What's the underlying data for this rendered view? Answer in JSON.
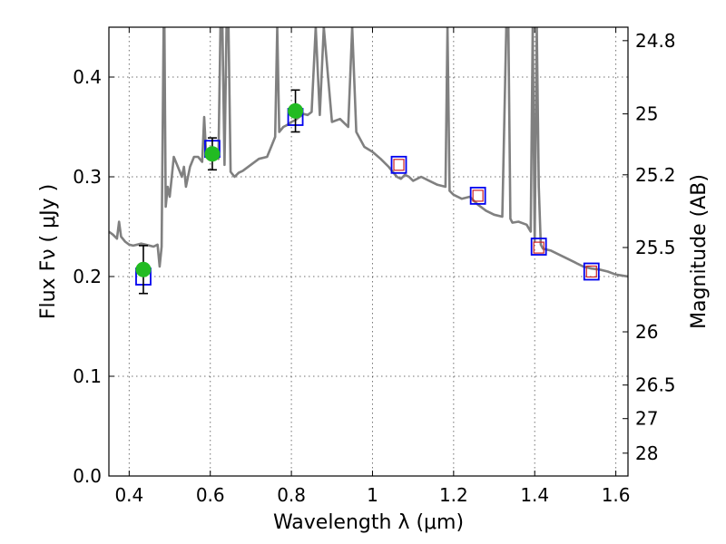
{
  "chart_data": {
    "type": "scatter",
    "xlabel": "Wavelength  λ (μm)",
    "ylabel": "Flux  Fν  ( μJy )",
    "y2label": "Magnitude (AB)",
    "xlim": [
      0.35,
      1.63
    ],
    "ylim": [
      0.0,
      0.45
    ],
    "xticks": [
      0.4,
      0.6,
      0.8,
      1.0,
      1.2,
      1.4,
      1.6
    ],
    "xtick_labels": [
      "0.4",
      "0.6",
      "0.8",
      "1",
      "1.2",
      "1.4",
      "1.6"
    ],
    "yticks": [
      0.0,
      0.1,
      0.2,
      0.3,
      0.4
    ],
    "ytick_labels": [
      "0.0",
      "0.1",
      "0.2",
      "0.3",
      "0.4"
    ],
    "mag_ticks": [
      24.8,
      25,
      25.2,
      25.5,
      26,
      26.5,
      27,
      28
    ],
    "mag_tick_labels": [
      "24.8",
      "25",
      "25.2",
      "25.5",
      "26",
      "26.5",
      "27",
      "28"
    ],
    "grid": true,
    "colors": {
      "model": "#808080",
      "observed": "#22bb22",
      "model_box": "#0000ee",
      "inner_box": "#cc2222",
      "errorbar": "#000000"
    },
    "series": [
      {
        "name": "model spectrum",
        "kind": "line",
        "x": [
          0.35,
          0.36,
          0.37,
          0.375,
          0.38,
          0.39,
          0.4,
          0.41,
          0.42,
          0.43,
          0.44,
          0.45,
          0.46,
          0.47,
          0.475,
          0.48,
          0.485,
          0.487,
          0.49,
          0.495,
          0.5,
          0.505,
          0.51,
          0.52,
          0.53,
          0.535,
          0.54,
          0.55,
          0.56,
          0.57,
          0.58,
          0.585,
          0.59,
          0.6,
          0.61,
          0.62,
          0.625,
          0.63,
          0.635,
          0.64,
          0.645,
          0.65,
          0.66,
          0.67,
          0.68,
          0.7,
          0.72,
          0.74,
          0.75,
          0.76,
          0.765,
          0.77,
          0.78,
          0.79,
          0.8,
          0.81,
          0.82,
          0.83,
          0.84,
          0.85,
          0.86,
          0.87,
          0.88,
          0.9,
          0.92,
          0.94,
          0.95,
          0.96,
          0.98,
          1.0,
          1.02,
          1.04,
          1.05,
          1.06,
          1.07,
          1.08,
          1.09,
          1.1,
          1.12,
          1.14,
          1.16,
          1.18,
          1.185,
          1.19,
          1.2,
          1.22,
          1.24,
          1.25,
          1.26,
          1.28,
          1.3,
          1.32,
          1.33,
          1.335,
          1.34,
          1.345,
          1.36,
          1.38,
          1.39,
          1.395,
          1.4,
          1.405,
          1.41,
          1.415,
          1.42,
          1.44,
          1.46,
          1.48,
          1.5,
          1.52,
          1.54,
          1.56,
          1.58,
          1.6,
          1.63
        ],
        "y": [
          0.245,
          0.242,
          0.238,
          0.255,
          0.24,
          0.235,
          0.232,
          0.231,
          0.232,
          0.233,
          0.232,
          0.231,
          0.23,
          0.232,
          0.21,
          0.23,
          0.45,
          0.45,
          0.27,
          0.29,
          0.28,
          0.3,
          0.32,
          0.31,
          0.3,
          0.31,
          0.29,
          0.31,
          0.32,
          0.32,
          0.315,
          0.36,
          0.32,
          0.322,
          0.325,
          0.318,
          0.45,
          0.45,
          0.312,
          0.45,
          0.45,
          0.305,
          0.3,
          0.304,
          0.306,
          0.312,
          0.318,
          0.32,
          0.33,
          0.34,
          0.45,
          0.345,
          0.35,
          0.352,
          0.355,
          0.357,
          0.36,
          0.363,
          0.362,
          0.365,
          0.45,
          0.362,
          0.45,
          0.355,
          0.358,
          0.35,
          0.45,
          0.345,
          0.33,
          0.325,
          0.318,
          0.31,
          0.305,
          0.3,
          0.298,
          0.302,
          0.3,
          0.296,
          0.3,
          0.296,
          0.292,
          0.29,
          0.45,
          0.286,
          0.282,
          0.278,
          0.28,
          0.276,
          0.272,
          0.266,
          0.262,
          0.26,
          0.45,
          0.45,
          0.258,
          0.254,
          0.255,
          0.252,
          0.245,
          0.45,
          0.235,
          0.45,
          0.29,
          0.232,
          0.228,
          0.226,
          0.222,
          0.218,
          0.214,
          0.21,
          0.208,
          0.207,
          0.205,
          0.202,
          0.2
        ]
      },
      {
        "name": "observed photometry",
        "kind": "points",
        "x": [
          0.435,
          0.605,
          0.81
        ],
        "y": [
          0.207,
          0.323,
          0.366
        ],
        "yerr": [
          0.024,
          0.016,
          0.021
        ]
      },
      {
        "name": "model photometry",
        "kind": "boxes",
        "x": [
          0.435,
          0.605,
          0.81,
          1.065,
          1.26,
          1.41,
          1.54
        ],
        "y": [
          0.2,
          0.328,
          0.36,
          0.312,
          0.281,
          0.23,
          0.205
        ]
      },
      {
        "name": "predicted bands",
        "kind": "inner-boxes",
        "x": [
          1.065,
          1.26,
          1.41,
          1.54
        ],
        "y": [
          0.312,
          0.281,
          0.229,
          0.205
        ]
      }
    ]
  }
}
